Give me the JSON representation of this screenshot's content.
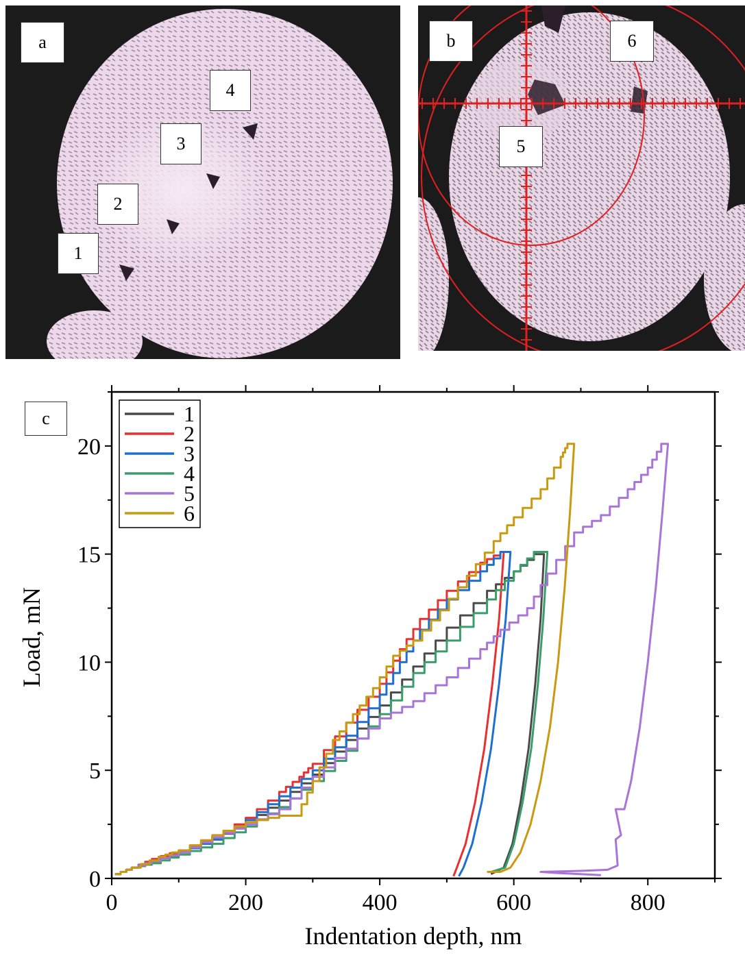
{
  "panel_a": {
    "label": "a",
    "markers": [
      "1",
      "2",
      "3",
      "4"
    ]
  },
  "panel_b": {
    "label": "b",
    "markers": [
      "5",
      "6"
    ]
  },
  "chart_data": {
    "type": "line",
    "panel_label": "c",
    "xlabel": "Indentation depth, nm",
    "ylabel": "Load, mN",
    "xlim": [
      0,
      900
    ],
    "ylim": [
      0,
      22.5
    ],
    "xticks": [
      0,
      200,
      400,
      600,
      800
    ],
    "yticks": [
      0,
      5,
      10,
      15,
      20
    ],
    "legend_position": "top-left",
    "series": [
      {
        "name": "1",
        "color": "#4a4a4a",
        "loading": [
          [
            5,
            0.2
          ],
          [
            30,
            0.5
          ],
          [
            60,
            0.8
          ],
          [
            100,
            1.2
          ],
          [
            150,
            1.8
          ],
          [
            200,
            2.6
          ],
          [
            250,
            3.6
          ],
          [
            300,
            4.8
          ],
          [
            350,
            6.4
          ],
          [
            400,
            8.0
          ],
          [
            450,
            9.8
          ],
          [
            500,
            11.6
          ],
          [
            560,
            13.3
          ],
          [
            600,
            14.2
          ],
          [
            630,
            15.0
          ]
        ],
        "hold_end": [
          645,
          15.0
        ],
        "unloading": [
          [
            645,
            15.0
          ],
          [
            640,
            12.0
          ],
          [
            632,
            9.0
          ],
          [
            622,
            6.0
          ],
          [
            610,
            3.5
          ],
          [
            598,
            1.6
          ],
          [
            585,
            0.5
          ],
          [
            566,
            0.2
          ]
        ]
      },
      {
        "name": "2",
        "color": "#e83030",
        "loading": [
          [
            5,
            0.2
          ],
          [
            30,
            0.5
          ],
          [
            60,
            0.9
          ],
          [
            100,
            1.3
          ],
          [
            150,
            1.9
          ],
          [
            200,
            2.8
          ],
          [
            250,
            4.0
          ],
          [
            280,
            4.7
          ],
          [
            300,
            5.3
          ],
          [
            350,
            7.2
          ],
          [
            400,
            9.0
          ],
          [
            430,
            10.6
          ],
          [
            460,
            12.0
          ],
          [
            500,
            13.3
          ],
          [
            550,
            14.6
          ],
          [
            580,
            15.1
          ]
        ],
        "hold_end": [
          585,
          15.1
        ],
        "unloading": [
          [
            585,
            15.1
          ],
          [
            578,
            12.0
          ],
          [
            568,
            9.0
          ],
          [
            556,
            6.0
          ],
          [
            542,
            3.5
          ],
          [
            528,
            1.6
          ],
          [
            515,
            0.5
          ],
          [
            510,
            0.1
          ]
        ]
      },
      {
        "name": "3",
        "color": "#1e6fd0",
        "loading": [
          [
            5,
            0.2
          ],
          [
            30,
            0.5
          ],
          [
            60,
            0.8
          ],
          [
            100,
            1.2
          ],
          [
            150,
            1.8
          ],
          [
            200,
            2.7
          ],
          [
            250,
            3.8
          ],
          [
            300,
            5.0
          ],
          [
            350,
            6.6
          ],
          [
            400,
            8.5
          ],
          [
            430,
            10.0
          ],
          [
            460,
            11.5
          ],
          [
            500,
            12.9
          ],
          [
            550,
            14.2
          ],
          [
            580,
            15.1
          ]
        ],
        "hold_end": [
          595,
          15.1
        ],
        "unloading": [
          [
            595,
            15.1
          ],
          [
            588,
            12.0
          ],
          [
            578,
            9.0
          ],
          [
            566,
            6.0
          ],
          [
            552,
            3.5
          ],
          [
            538,
            1.6
          ],
          [
            525,
            0.5
          ],
          [
            518,
            0.1
          ]
        ]
      },
      {
        "name": "4",
        "color": "#3a9e6a",
        "loading": [
          [
            5,
            0.2
          ],
          [
            30,
            0.5
          ],
          [
            60,
            0.7
          ],
          [
            100,
            1.1
          ],
          [
            150,
            1.6
          ],
          [
            200,
            2.4
          ],
          [
            250,
            3.3
          ],
          [
            300,
            4.5
          ],
          [
            350,
            5.9
          ],
          [
            400,
            7.6
          ],
          [
            450,
            9.5
          ],
          [
            500,
            11.0
          ],
          [
            560,
            12.9
          ],
          [
            600,
            14.2
          ],
          [
            630,
            15.1
          ]
        ],
        "hold_end": [
          650,
          15.1
        ],
        "unloading": [
          [
            650,
            15.1
          ],
          [
            644,
            12.0
          ],
          [
            636,
            9.0
          ],
          [
            626,
            6.0
          ],
          [
            613,
            3.5
          ],
          [
            600,
            1.6
          ],
          [
            587,
            0.5
          ],
          [
            566,
            0.3
          ]
        ]
      },
      {
        "name": "5",
        "color": "#a974d8",
        "loading": [
          [
            5,
            0.2
          ],
          [
            30,
            0.5
          ],
          [
            60,
            0.8
          ],
          [
            100,
            1.2
          ],
          [
            150,
            1.9
          ],
          [
            200,
            2.5
          ],
          [
            250,
            3.2
          ],
          [
            300,
            4.7
          ],
          [
            350,
            6.0
          ],
          [
            400,
            7.4
          ],
          [
            450,
            8.2
          ],
          [
            500,
            9.3
          ],
          [
            550,
            10.6
          ],
          [
            580,
            11.5
          ],
          [
            620,
            12.5
          ],
          [
            650,
            14.1
          ],
          [
            690,
            16.0
          ],
          [
            730,
            16.8
          ],
          [
            770,
            18.0
          ],
          [
            800,
            19.0
          ],
          [
            820,
            20.1
          ]
        ],
        "hold_end": [
          830,
          20.1
        ],
        "unloading": [
          [
            830,
            20.1
          ],
          [
            822,
            17.0
          ],
          [
            812,
            13.5
          ],
          [
            800,
            10.0
          ],
          [
            788,
            7.0
          ],
          [
            775,
            4.5
          ],
          [
            765,
            3.2
          ],
          [
            752,
            3.2
          ],
          [
            760,
            2.0
          ],
          [
            752,
            1.8
          ],
          [
            755,
            0.6
          ],
          [
            740,
            0.4
          ],
          [
            700,
            0.35
          ],
          [
            640,
            0.3
          ],
          [
            665,
            0.25
          ],
          [
            700,
            0.2
          ],
          [
            730,
            0.15
          ]
        ]
      },
      {
        "name": "6",
        "color": "#c99a10",
        "loading": [
          [
            5,
            0.2
          ],
          [
            30,
            0.5
          ],
          [
            70,
            1.0
          ],
          [
            100,
            1.3
          ],
          [
            150,
            2.0
          ],
          [
            200,
            2.6
          ],
          [
            250,
            2.9
          ],
          [
            275,
            2.9
          ],
          [
            300,
            4.5
          ],
          [
            330,
            6.4
          ],
          [
            360,
            7.6
          ],
          [
            390,
            8.8
          ],
          [
            420,
            10.3
          ],
          [
            450,
            11.0
          ],
          [
            490,
            12.4
          ],
          [
            530,
            14.0
          ],
          [
            570,
            15.6
          ],
          [
            600,
            16.7
          ],
          [
            640,
            18.0
          ],
          [
            670,
            19.5
          ],
          [
            680,
            20.1
          ]
        ],
        "hold_end": [
          690,
          20.1
        ],
        "unloading": [
          [
            690,
            20.1
          ],
          [
            684,
            17.0
          ],
          [
            676,
            13.5
          ],
          [
            666,
            10.0
          ],
          [
            654,
            7.0
          ],
          [
            640,
            4.5
          ],
          [
            625,
            2.5
          ],
          [
            610,
            1.2
          ],
          [
            595,
            0.5
          ],
          [
            580,
            0.3
          ],
          [
            560,
            0.3
          ]
        ]
      }
    ]
  }
}
